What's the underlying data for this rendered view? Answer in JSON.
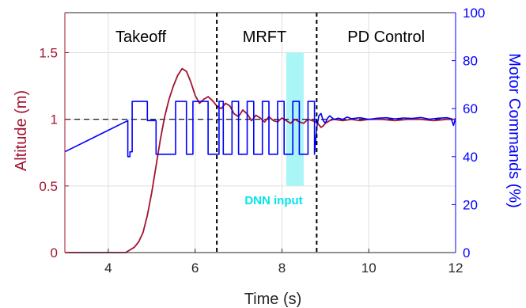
{
  "chart_data": {
    "type": "line",
    "title": "",
    "xlabel": "Time (s)",
    "ylabel_left": "Altitude (m)",
    "ylabel_right": "Motor Commands (%)",
    "xlim": [
      3,
      12
    ],
    "ylim_left": [
      0,
      1.8
    ],
    "ylim_right": [
      0,
      100
    ],
    "x_ticks": [
      4,
      6,
      8,
      10,
      12
    ],
    "y_left_ticks": [
      0,
      0.5,
      1,
      1.5
    ],
    "y_left_tick_labels": [
      "0",
      "0.5",
      "1",
      "1.5"
    ],
    "y_right_ticks": [
      0,
      20,
      40,
      60,
      80,
      100
    ],
    "grid": true,
    "colors": {
      "altitude": "#a2142f",
      "motor": "#0000ff",
      "reference": "#000000",
      "dnn_window": "#aaf5f5",
      "dnn_text": "#00e5ee"
    },
    "phase_boundaries": [
      6.5,
      8.8
    ],
    "phases": [
      {
        "label": "Takeoff",
        "x_center": 4.75
      },
      {
        "label": "MRFT",
        "x_center": 7.6
      },
      {
        "label": "PD Control",
        "x_center": 10.4
      }
    ],
    "reference_altitude": 1.0,
    "dnn_window": {
      "x_start": 8.1,
      "x_end": 8.5,
      "y_low": 0.5,
      "y_high": 1.5,
      "label": "DNN input"
    },
    "series": [
      {
        "name": "Altitude",
        "axis": "left",
        "x": [
          3.0,
          4.4,
          4.5,
          4.6,
          4.7,
          4.8,
          4.9,
          5.0,
          5.1,
          5.2,
          5.3,
          5.4,
          5.5,
          5.6,
          5.7,
          5.8,
          5.9,
          6.0,
          6.1,
          6.2,
          6.3,
          6.4,
          6.5,
          6.6,
          6.7,
          6.8,
          6.9,
          7.0,
          7.1,
          7.2,
          7.3,
          7.4,
          7.5,
          7.6,
          7.7,
          7.8,
          7.9,
          8.0,
          8.1,
          8.2,
          8.3,
          8.4,
          8.5,
          8.6,
          8.7,
          8.8,
          8.85,
          8.9,
          8.95,
          9.0,
          9.1,
          9.2,
          9.4,
          9.6,
          9.8,
          10.0,
          10.3,
          10.6,
          10.9,
          11.2,
          11.5,
          11.8,
          12.0
        ],
        "y": [
          0.0,
          0.0,
          0.02,
          0.04,
          0.08,
          0.15,
          0.28,
          0.45,
          0.65,
          0.85,
          1.02,
          1.15,
          1.25,
          1.33,
          1.38,
          1.36,
          1.28,
          1.18,
          1.12,
          1.15,
          1.17,
          1.14,
          1.1,
          1.08,
          1.12,
          1.1,
          1.04,
          1.02,
          1.07,
          1.04,
          0.99,
          1.03,
          1.01,
          0.98,
          1.02,
          0.99,
          0.98,
          1.01,
          0.99,
          0.97,
          1.0,
          0.98,
          0.97,
          1.0,
          0.99,
          0.98,
          0.96,
          0.94,
          0.95,
          0.97,
          0.99,
          1.0,
          0.99,
          1.0,
          0.99,
          1.0,
          1.0,
          0.99,
          1.0,
          1.0,
          0.99,
          1.0,
          1.0
        ]
      },
      {
        "name": "Motor Commands",
        "axis": "right",
        "x": [
          3.0,
          4.45,
          4.45,
          4.5,
          4.5,
          4.55,
          4.55,
          4.9,
          4.9,
          5.1,
          5.1,
          5.55,
          5.55,
          5.8,
          5.8,
          5.95,
          5.95,
          6.3,
          6.3,
          6.55,
          6.55,
          6.65,
          6.65,
          6.85,
          6.85,
          7.0,
          7.0,
          7.2,
          7.2,
          7.35,
          7.35,
          7.55,
          7.55,
          7.7,
          7.7,
          7.9,
          7.9,
          8.05,
          8.05,
          8.25,
          8.25,
          8.4,
          8.4,
          8.6,
          8.6,
          8.75,
          8.75,
          8.8,
          8.85,
          8.9,
          8.95,
          9.0,
          9.05,
          9.1,
          9.2,
          9.3,
          9.4,
          9.5,
          9.6,
          9.8,
          10.0,
          10.2,
          10.4,
          10.6,
          10.8,
          11.0,
          11.2,
          11.4,
          11.6,
          11.8,
          11.9,
          11.95,
          12.0
        ],
        "y": [
          42,
          55,
          40,
          40,
          42,
          42,
          63,
          63,
          55,
          55,
          41,
          41,
          63,
          63,
          41,
          41,
          63,
          63,
          41,
          41,
          63,
          63,
          41,
          41,
          63,
          63,
          41,
          41,
          63,
          63,
          41,
          41,
          63,
          63,
          41,
          41,
          63,
          63,
          41,
          41,
          63,
          63,
          41,
          41,
          63,
          63,
          41,
          52,
          57,
          58,
          55,
          54,
          56,
          57,
          55.5,
          56,
          55.5,
          56.5,
          55.8,
          56.2,
          55.5,
          56,
          56.2,
          55.7,
          56.1,
          55.9,
          56.3,
          55.6,
          56,
          56.2,
          55.8,
          53,
          56
        ]
      }
    ]
  }
}
